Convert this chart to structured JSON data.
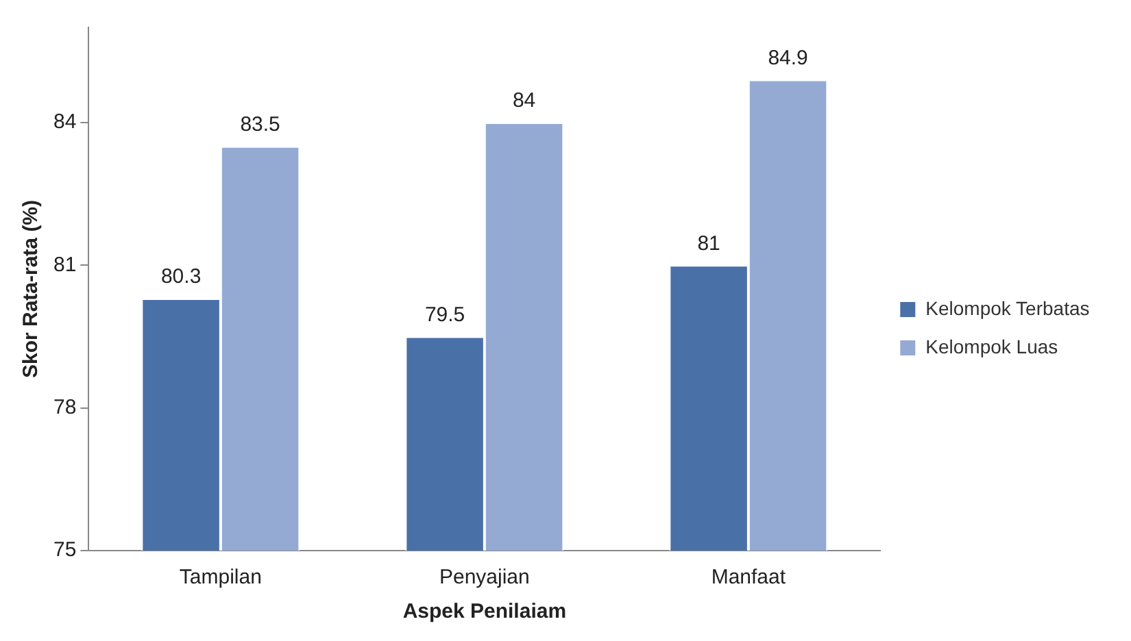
{
  "chart_data": {
    "type": "bar",
    "xlabel": "Aspek Penilaiam",
    "ylabel": "Skor Rata-rata (%)",
    "categories": [
      "Tampilan",
      "Penyajian",
      "Manfaat"
    ],
    "series": [
      {
        "name": "Kelompok Terbatas",
        "color": "#4a70a8",
        "values": [
          80.3,
          79.5,
          81
        ]
      },
      {
        "name": "Kelompok Luas",
        "color": "#94aad3",
        "values": [
          83.5,
          84,
          84.9
        ]
      }
    ],
    "ylim": [
      75,
      86
    ],
    "yticks": [
      75,
      78,
      81,
      84
    ],
    "grid": false,
    "legend": "right",
    "data_labels": true
  }
}
